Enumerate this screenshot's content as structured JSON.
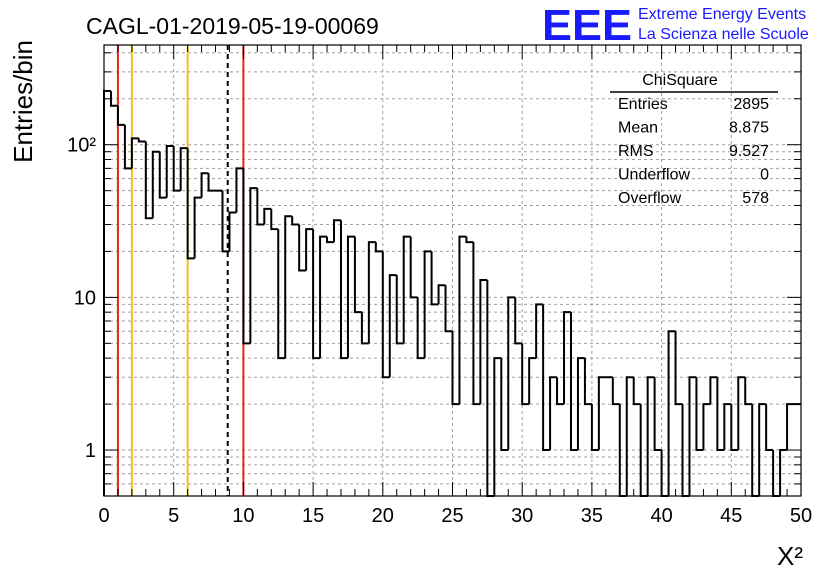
{
  "colors": {
    "histogram": "#000000",
    "grid": "#a0a0a0",
    "red_line": "#e8221c",
    "yellow_line": "#f2c21a",
    "dashed_line": "#000000",
    "logo": "#1a1aff"
  },
  "header": {
    "title": "CAGL-01-2019-05-19-00069",
    "logo_text": "EEE",
    "logo_line1": "Extreme Energy Events",
    "logo_line2": "La Scienza nelle Scuole"
  },
  "stats": {
    "name": "ChiSquare",
    "rows": [
      {
        "label": "Entries",
        "value": "2895"
      },
      {
        "label": "Mean",
        "value": "8.875"
      },
      {
        "label": "RMS",
        "value": "9.527"
      },
      {
        "label": "Underflow",
        "value": "0"
      },
      {
        "label": "Overflow",
        "value": "578"
      }
    ]
  },
  "chart_data": {
    "type": "histogram",
    "title": "CAGL-01-2019-05-19-00069",
    "xlabel": "X²",
    "ylabel": "Entries/bin",
    "xlim": [
      0,
      50
    ],
    "ylim": [
      0.5,
      450
    ],
    "y_scale": "log",
    "grid": true,
    "bin_width": 0.5,
    "x_ticks": [
      0,
      5,
      10,
      15,
      20,
      25,
      30,
      35,
      40,
      45,
      50
    ],
    "y_ticks": [
      {
        "value": 1,
        "label": "1"
      },
      {
        "value": 10,
        "label": "10"
      },
      {
        "value": 100,
        "label": "10²"
      }
    ],
    "bin_counts": [
      225,
      180,
      135,
      70,
      110,
      105,
      33,
      90,
      45,
      98,
      50,
      95,
      18,
      45,
      65,
      50,
      50,
      20,
      36,
      70,
      5,
      52,
      30,
      38,
      28,
      4,
      34,
      30,
      15,
      28,
      4,
      25,
      23,
      32,
      4,
      25,
      8,
      5,
      23,
      20,
      3,
      14,
      5,
      25,
      10,
      4,
      20,
      9,
      12,
      6,
      2,
      25,
      23,
      2,
      13,
      0,
      4,
      1,
      10,
      5,
      2,
      4,
      9,
      1,
      3,
      2,
      8,
      1,
      4,
      2,
      1,
      3,
      3,
      2,
      0,
      3,
      2,
      0,
      3,
      1,
      0,
      6,
      2,
      0,
      3,
      1,
      2,
      3,
      1,
      2,
      1,
      3,
      2,
      0,
      2,
      1,
      0,
      1,
      2,
      2
    ],
    "vertical_lines": [
      {
        "x": 1,
        "style": "red"
      },
      {
        "x": 2,
        "style": "yellow"
      },
      {
        "x": 6,
        "style": "yellow"
      },
      {
        "x": 8.875,
        "style": "dashed"
      },
      {
        "x": 10,
        "style": "red"
      }
    ]
  }
}
